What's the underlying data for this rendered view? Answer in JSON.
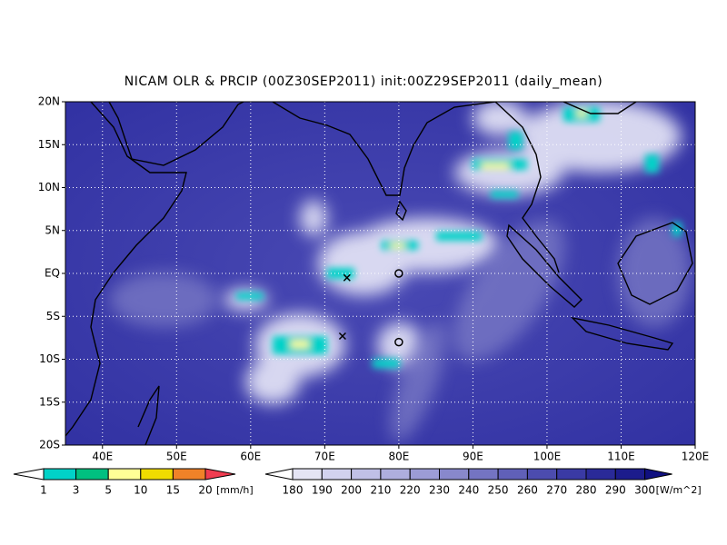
{
  "title": "NICAM OLR & PRCIP (00Z30SEP2011) init:00Z29SEP2011 (daily_mean)",
  "map": {
    "xlim": [
      35,
      120
    ],
    "ylim": [
      -20,
      20
    ],
    "xticks": [
      {
        "value": 40,
        "label": "40E"
      },
      {
        "value": 50,
        "label": "50E"
      },
      {
        "value": 60,
        "label": "60E"
      },
      {
        "value": 70,
        "label": "70E"
      },
      {
        "value": 80,
        "label": "80E"
      },
      {
        "value": 90,
        "label": "90E"
      },
      {
        "value": 100,
        "label": "100E"
      },
      {
        "value": 110,
        "label": "110E"
      },
      {
        "value": 120,
        "label": "120E"
      }
    ],
    "yticks": [
      {
        "value": 20,
        "label": "20N"
      },
      {
        "value": 15,
        "label": "15N"
      },
      {
        "value": 10,
        "label": "10N"
      },
      {
        "value": 5,
        "label": "5N"
      },
      {
        "value": 0,
        "label": "EQ"
      },
      {
        "value": -5,
        "label": "5S"
      },
      {
        "value": -10,
        "label": "10S"
      },
      {
        "value": -15,
        "label": "15S"
      },
      {
        "value": -20,
        "label": "20S"
      }
    ],
    "markers": [
      {
        "symbol": "x",
        "lon": 73,
        "lat": -0.5
      },
      {
        "symbol": "o",
        "lon": 80,
        "lat": 0
      },
      {
        "symbol": "x",
        "lon": 72.4,
        "lat": -7.3
      },
      {
        "symbol": "o",
        "lon": 80,
        "lat": -8
      }
    ]
  },
  "precip_colorbar": {
    "levels": [
      1,
      3,
      5,
      10,
      15,
      20
    ],
    "unit": "[mm/h]",
    "colors": [
      "#ffffff",
      "#00d2c8",
      "#00c080",
      "#ffff96",
      "#f0dc00",
      "#f08228",
      "#f03c50"
    ]
  },
  "olr_colorbar": {
    "levels": [
      180,
      190,
      200,
      210,
      220,
      230,
      240,
      250,
      260,
      270,
      280,
      290,
      300
    ],
    "unit": "[W/m^2]",
    "colors": [
      "#ffffff",
      "#e4e4f4",
      "#d2d2ee",
      "#c0c0e6",
      "#aeaede",
      "#9c9cd6",
      "#8888cc",
      "#7474c2",
      "#6060b8",
      "#4c4cae",
      "#3a3aa4",
      "#2a2a98",
      "#1c1c8c",
      "#101080"
    ]
  }
}
